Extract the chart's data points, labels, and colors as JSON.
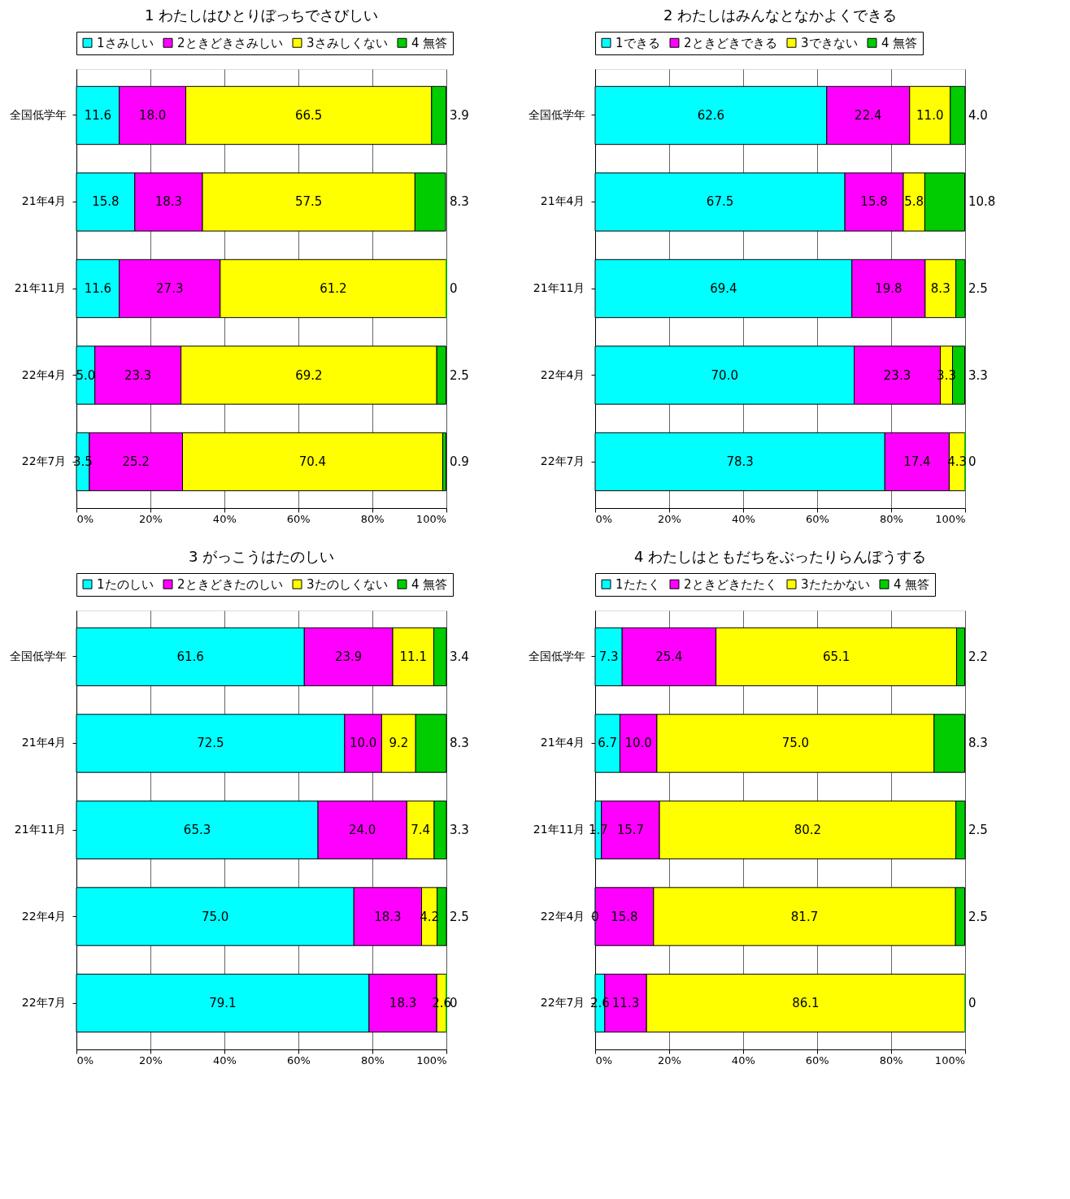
{
  "chart_data": [
    {
      "type": "bar",
      "orientation": "horizontal",
      "stacked": true,
      "title": "1 わたしはひとりぼっちでさびしい",
      "categories": [
        "全国低学年",
        "21年4月",
        "21年11月",
        "22年4月",
        "22年7月"
      ],
      "xlim": [
        0,
        100.1
      ],
      "xticks": [
        {
          "value": 0,
          "label": "0%"
        },
        {
          "value": 20,
          "label": "20%"
        },
        {
          "value": 40,
          "label": "40%"
        },
        {
          "value": 60,
          "label": "60%"
        },
        {
          "value": 80,
          "label": "80%"
        },
        {
          "value": 100,
          "label": "100%"
        }
      ],
      "grid": "x",
      "legend": "top",
      "series": [
        {
          "name": "1さみしい",
          "color": "#00ffff",
          "values": [
            11.6,
            15.8,
            11.6,
            5.0,
            3.5
          ],
          "value_labels": [
            "11.6",
            "15.8",
            "11.6",
            "5.0",
            "3.5"
          ]
        },
        {
          "name": "2ときどきさみしい",
          "color": "#ff00ff",
          "values": [
            18.0,
            18.3,
            27.3,
            23.3,
            25.2
          ],
          "value_labels": [
            "18.0",
            "18.3",
            "27.3",
            "23.3",
            "25.2"
          ]
        },
        {
          "name": "3さみしくない",
          "color": "#ffff00",
          "values": [
            66.5,
            57.5,
            61.2,
            69.2,
            70.4
          ],
          "value_labels": [
            "66.5",
            "57.5",
            "61.2",
            "69.2",
            "70.4"
          ]
        },
        {
          "name": "4 無答",
          "color": "#00cc00",
          "values": [
            3.9,
            8.3,
            0,
            2.5,
            0.9
          ],
          "value_labels": [
            "3.9",
            "8.3",
            "0",
            "2.5",
            "0.9"
          ]
        }
      ]
    },
    {
      "type": "bar",
      "orientation": "horizontal",
      "stacked": true,
      "title": "2 わたしはみんなとなかよくできる",
      "categories": [
        "全国低学年",
        "21年4月",
        "21年11月",
        "22年4月",
        "22年7月"
      ],
      "xlim": [
        0,
        100
      ],
      "xticks": [
        {
          "value": 0,
          "label": "0%"
        },
        {
          "value": 20,
          "label": "20%"
        },
        {
          "value": 40,
          "label": "40%"
        },
        {
          "value": 60,
          "label": "60%"
        },
        {
          "value": 80,
          "label": "80%"
        },
        {
          "value": 100,
          "label": "100%"
        }
      ],
      "grid": "x",
      "legend": "top",
      "series": [
        {
          "name": "1できる",
          "color": "#00ffff",
          "values": [
            62.6,
            67.5,
            69.4,
            70.0,
            78.3
          ],
          "value_labels": [
            "62.6",
            "67.5",
            "69.4",
            "70.0",
            "78.3"
          ]
        },
        {
          "name": "2ときどきできる",
          "color": "#ff00ff",
          "values": [
            22.4,
            15.8,
            19.8,
            23.3,
            17.4
          ],
          "value_labels": [
            "22.4",
            "15.8",
            "19.8",
            "23.3",
            "17.4"
          ]
        },
        {
          "name": "3できない",
          "color": "#ffff00",
          "values": [
            11.0,
            5.8,
            8.3,
            3.3,
            4.3
          ],
          "value_labels": [
            "11.0",
            "5.8",
            "8.3",
            "3.3",
            "4.3"
          ]
        },
        {
          "name": "4 無答",
          "color": "#00cc00",
          "values": [
            4.0,
            10.8,
            2.5,
            3.3,
            0
          ],
          "value_labels": [
            "4.0",
            "10.8",
            "2.5",
            "3.3",
            "0"
          ]
        }
      ]
    },
    {
      "type": "bar",
      "orientation": "horizontal",
      "stacked": true,
      "title": "3 がっこうはたのしい",
      "categories": [
        "全国低学年",
        "21年4月",
        "21年11月",
        "22年4月",
        "22年7月"
      ],
      "xlim": [
        0,
        100
      ],
      "xticks": [
        {
          "value": 0,
          "label": "0%"
        },
        {
          "value": 20,
          "label": "20%"
        },
        {
          "value": 40,
          "label": "40%"
        },
        {
          "value": 60,
          "label": "60%"
        },
        {
          "value": 80,
          "label": "80%"
        },
        {
          "value": 100,
          "label": "100%"
        }
      ],
      "grid": "x",
      "legend": "top",
      "series": [
        {
          "name": "1たのしい",
          "color": "#00ffff",
          "values": [
            61.6,
            72.5,
            65.3,
            75.0,
            79.1
          ],
          "value_labels": [
            "61.6",
            "72.5",
            "65.3",
            "75.0",
            "79.1"
          ]
        },
        {
          "name": "2ときどきたのしい",
          "color": "#ff00ff",
          "values": [
            23.9,
            10.0,
            24.0,
            18.3,
            18.3
          ],
          "value_labels": [
            "23.9",
            "10.0",
            "24.0",
            "18.3",
            "18.3"
          ]
        },
        {
          "name": "3たのしくない",
          "color": "#ffff00",
          "values": [
            11.1,
            9.2,
            7.4,
            4.2,
            2.6
          ],
          "value_labels": [
            "11.1",
            "9.2",
            "7.4",
            "4.2",
            "2.6"
          ]
        },
        {
          "name": "4 無答",
          "color": "#00cc00",
          "values": [
            3.4,
            8.3,
            3.3,
            2.5,
            0
          ],
          "value_labels": [
            "3.4",
            "8.3",
            "3.3",
            "2.5",
            "0"
          ]
        }
      ]
    },
    {
      "type": "bar",
      "orientation": "horizontal",
      "stacked": true,
      "title": "4 わたしはともだちをぶったりらんぼうする",
      "categories": [
        "全国低学年",
        "21年4月",
        "21年11月",
        "22年4月",
        "22年7月"
      ],
      "xlim": [
        0,
        100.1
      ],
      "xticks": [
        {
          "value": 0,
          "label": "0%"
        },
        {
          "value": 20,
          "label": "20%"
        },
        {
          "value": 40,
          "label": "40%"
        },
        {
          "value": 60,
          "label": "60%"
        },
        {
          "value": 80,
          "label": "80%"
        },
        {
          "value": 100,
          "label": "100%"
        }
      ],
      "grid": "x",
      "legend": "top",
      "series": [
        {
          "name": "1たたく",
          "color": "#00ffff",
          "values": [
            7.3,
            6.7,
            1.7,
            0,
            2.6
          ],
          "value_labels": [
            "7.3",
            "6.7",
            "1.7",
            "0",
            "2.6"
          ]
        },
        {
          "name": "2ときどきたたく",
          "color": "#ff00ff",
          "values": [
            25.4,
            10.0,
            15.7,
            15.8,
            11.3
          ],
          "value_labels": [
            "25.4",
            "10.0",
            "15.7",
            "15.8",
            "11.3"
          ]
        },
        {
          "name": "3たたかない",
          "color": "#ffff00",
          "values": [
            65.1,
            75.0,
            80.2,
            81.7,
            86.1
          ],
          "value_labels": [
            "65.1",
            "75.0",
            "80.2",
            "81.7",
            "86.1"
          ]
        },
        {
          "name": "4 無答",
          "color": "#00cc00",
          "values": [
            2.2,
            8.3,
            2.5,
            2.5,
            0
          ],
          "value_labels": [
            "2.2",
            "8.3",
            "2.5",
            "2.5",
            "0"
          ]
        }
      ]
    }
  ]
}
